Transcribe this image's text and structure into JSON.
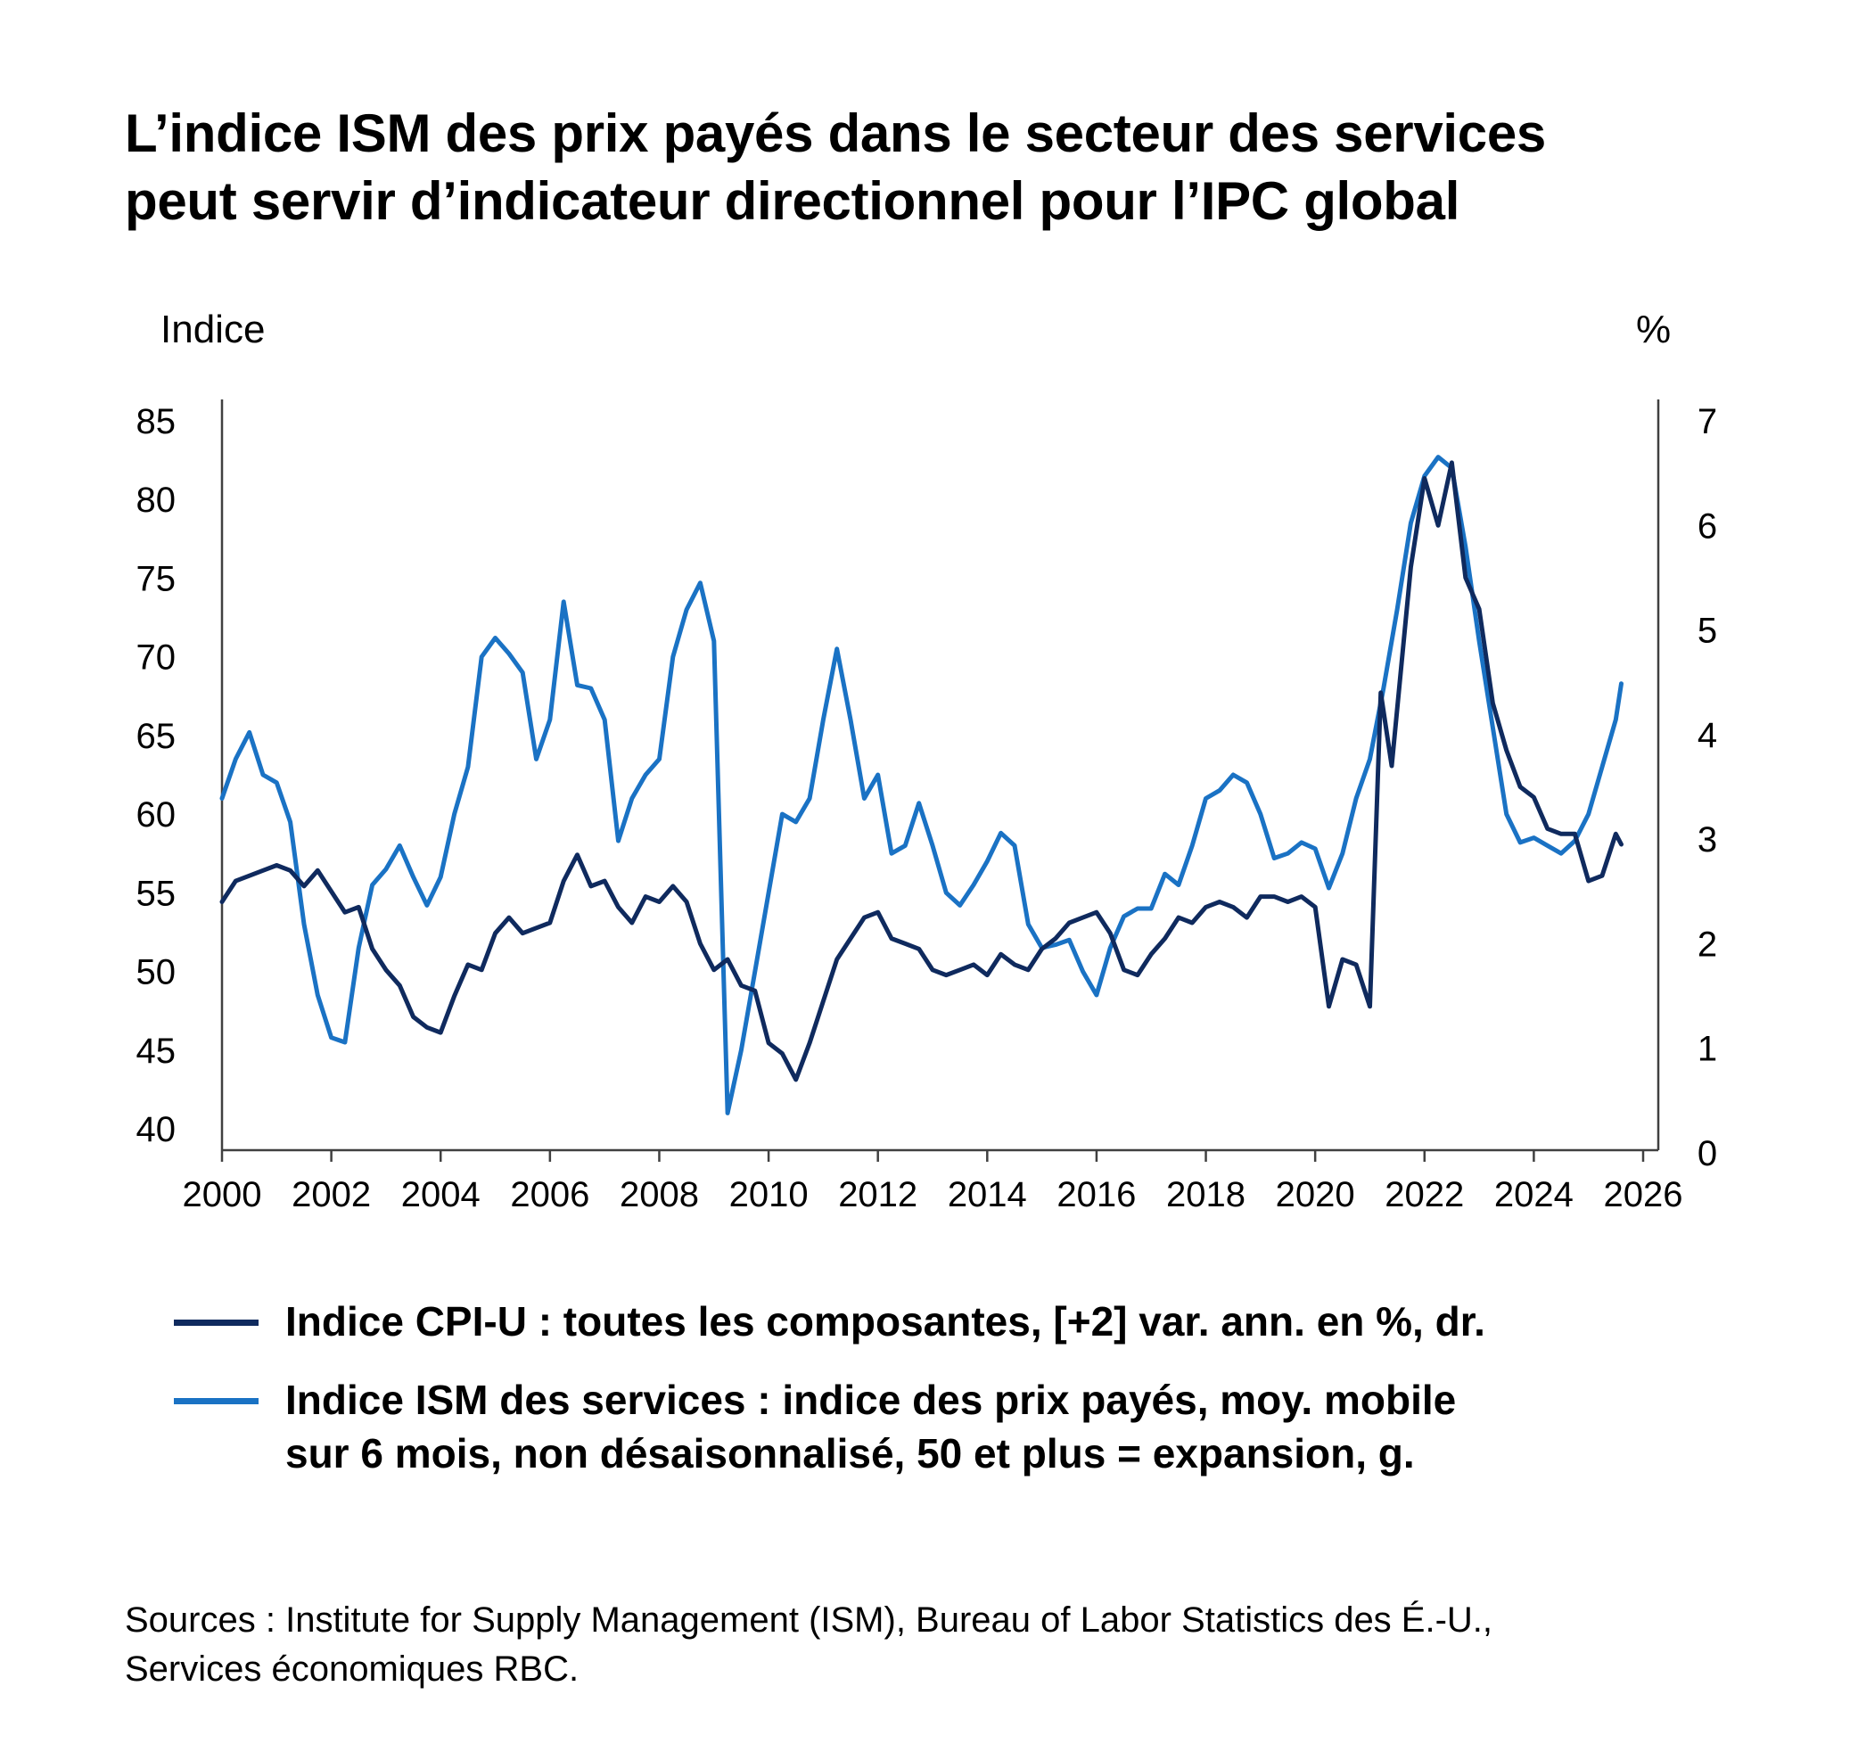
{
  "title_lines": [
    "L’indice ISM des prix payés dans le secteur des services",
    "peut servir d’indicateur directionnel pour l’IPC global"
  ],
  "axis_units": {
    "left": "Indice",
    "right": "%"
  },
  "legend": [
    {
      "label": "Indice CPI-U : toutes les composantes, [+2] var. ann. en %, dr.",
      "color": "#0f2a5e"
    },
    {
      "label": "Indice ISM des services : indice des prix payés, moy. mobile\nsur 6 mois, non désaisonnalisé, 50 et plus = expansion, g.",
      "color": "#1a72c4"
    }
  ],
  "sources": "Sources : Institute for Supply Management (ISM), Bureau of Labor Statistics des É.-U.,\nServices économiques RBC.",
  "chart_data": {
    "type": "line",
    "title": "L’indice ISM des prix payés dans le secteur des services peut servir d’indicateur directionnel pour l’IPC global",
    "xlabel": "",
    "ylabel": "Indice",
    "y2label": "%",
    "xlim": [
      2000,
      2026
    ],
    "ylim": [
      40,
      85
    ],
    "y2lim": [
      0,
      7
    ],
    "xticks": [
      "2000",
      "2002",
      "2004",
      "2006",
      "2008",
      "2010",
      "2012",
      "2014",
      "2016",
      "2018",
      "2020",
      "2022",
      "2024",
      "2026"
    ],
    "yticks": [
      "85",
      "80",
      "75",
      "70",
      "65",
      "60",
      "55",
      "50",
      "45",
      "40"
    ],
    "y2ticks": [
      "7",
      "6",
      "5",
      "4",
      "3",
      "2",
      "1",
      "0"
    ],
    "grid": false,
    "legend_position": "bottom",
    "series": [
      {
        "name": "Indice CPI-U : toutes les composantes, [+2] var. ann. en %, dr.",
        "axis": "right",
        "color": "#0f2a5e",
        "x": [
          2000.0,
          2000.25,
          2000.5,
          2000.75,
          2001.0,
          2001.25,
          2001.5,
          2001.75,
          2002.0,
          2002.25,
          2002.5,
          2002.75,
          2003.0,
          2003.25,
          2003.5,
          2003.75,
          2004.0,
          2004.25,
          2004.5,
          2004.75,
          2005.0,
          2005.25,
          2005.5,
          2005.75,
          2006.0,
          2006.25,
          2006.5,
          2006.75,
          2007.0,
          2007.25,
          2007.5,
          2007.75,
          2008.0,
          2008.25,
          2008.5,
          2008.75,
          2009.0,
          2009.25,
          2009.5,
          2009.75,
          2010.0,
          2010.25,
          2010.5,
          2010.75,
          2011.0,
          2011.25,
          2011.5,
          2011.75,
          2012.0,
          2012.25,
          2012.5,
          2012.75,
          2013.0,
          2013.25,
          2013.5,
          2013.75,
          2014.0,
          2014.25,
          2014.5,
          2014.75,
          2015.0,
          2015.25,
          2015.5,
          2015.75,
          2016.0,
          2016.25,
          2016.5,
          2016.75,
          2017.0,
          2017.25,
          2017.5,
          2017.75,
          2018.0,
          2018.25,
          2018.5,
          2018.75,
          2019.0,
          2019.25,
          2019.5,
          2019.75,
          2020.0,
          2020.25,
          2020.5,
          2020.75,
          2021.0,
          2021.2,
          2021.4,
          2021.75,
          2022.0,
          2022.25,
          2022.5,
          2022.75,
          2023.0,
          2023.25,
          2023.5,
          2023.75,
          2024.0,
          2024.25,
          2024.5,
          2024.75,
          2025.0,
          2025.25,
          2025.5,
          2025.6
        ],
        "values": [
          2.4,
          2.6,
          2.65,
          2.7,
          2.75,
          2.7,
          2.55,
          2.7,
          2.5,
          2.3,
          2.35,
          1.95,
          1.75,
          1.6,
          1.3,
          1.2,
          1.15,
          1.5,
          1.8,
          1.75,
          2.1,
          2.25,
          2.1,
          2.15,
          2.2,
          2.6,
          2.85,
          2.55,
          2.6,
          2.35,
          2.2,
          2.45,
          2.4,
          2.55,
          2.4,
          2.0,
          1.75,
          1.85,
          1.6,
          1.55,
          1.05,
          0.95,
          0.7,
          1.05,
          1.45,
          1.85,
          2.05,
          2.25,
          2.3,
          2.05,
          2.0,
          1.95,
          1.75,
          1.7,
          1.75,
          1.8,
          1.7,
          1.9,
          1.8,
          1.75,
          1.95,
          2.05,
          2.2,
          2.25,
          2.3,
          2.1,
          1.75,
          1.7,
          1.9,
          2.05,
          2.25,
          2.2,
          2.35,
          2.4,
          2.35,
          2.25,
          2.45,
          2.45,
          2.4,
          2.45,
          2.35,
          1.4,
          1.85,
          1.8,
          1.4,
          4.4,
          3.7,
          5.6,
          6.45,
          6.0,
          6.6,
          5.5,
          5.2,
          4.3,
          3.85,
          3.5,
          3.4,
          3.1,
          3.05,
          3.05,
          2.6,
          2.65,
          3.05,
          2.95
        ]
      },
      {
        "name": "Indice ISM des services : indice des prix payés, moy. mobile sur 6 mois, non désaisonnalisé, 50 et plus = expansion, g.",
        "axis": "left",
        "color": "#1a72c4",
        "x": [
          2000.0,
          2000.25,
          2000.5,
          2000.75,
          2001.0,
          2001.25,
          2001.5,
          2001.75,
          2002.0,
          2002.25,
          2002.5,
          2002.75,
          2003.0,
          2003.25,
          2003.5,
          2003.75,
          2004.0,
          2004.25,
          2004.5,
          2004.75,
          2005.0,
          2005.25,
          2005.5,
          2005.75,
          2006.0,
          2006.25,
          2006.5,
          2006.75,
          2007.0,
          2007.25,
          2007.5,
          2007.75,
          2008.0,
          2008.25,
          2008.5,
          2008.75,
          2009.0,
          2009.25,
          2009.5,
          2009.75,
          2010.0,
          2010.25,
          2010.5,
          2010.75,
          2011.0,
          2011.25,
          2011.5,
          2011.75,
          2012.0,
          2012.25,
          2012.5,
          2012.75,
          2013.0,
          2013.25,
          2013.5,
          2013.75,
          2014.0,
          2014.25,
          2014.5,
          2014.75,
          2015.0,
          2015.25,
          2015.5,
          2015.75,
          2016.0,
          2016.25,
          2016.5,
          2016.75,
          2017.0,
          2017.25,
          2017.5,
          2017.75,
          2018.0,
          2018.25,
          2018.5,
          2018.75,
          2019.0,
          2019.25,
          2019.5,
          2019.75,
          2020.0,
          2020.25,
          2020.5,
          2020.75,
          2021.0,
          2021.25,
          2021.5,
          2021.75,
          2022.0,
          2022.25,
          2022.5,
          2022.75,
          2023.0,
          2023.25,
          2023.5,
          2023.75,
          2024.0,
          2024.25,
          2024.5,
          2024.75,
          2025.0,
          2025.25,
          2025.5,
          2025.6
        ],
        "values": [
          61,
          63.5,
          65.2,
          62.5,
          62,
          59.5,
          53,
          48.5,
          45.8,
          45.5,
          51.5,
          55.5,
          56.5,
          58,
          56,
          54.2,
          56,
          60,
          63,
          70,
          71.2,
          70.2,
          69,
          63.5,
          66,
          73.5,
          68.2,
          68,
          66,
          58.3,
          61,
          62.5,
          63.5,
          70,
          73,
          74.7,
          71,
          41,
          45,
          50,
          55,
          60,
          59.5,
          61,
          66,
          70.5,
          66,
          61,
          62.5,
          57.5,
          58,
          60.7,
          58,
          55,
          54.2,
          55.5,
          57,
          58.8,
          58,
          53,
          51.5,
          51.7,
          52,
          50,
          48.5,
          51.5,
          53.5,
          54,
          54,
          56.2,
          55.5,
          58,
          61,
          61.5,
          62.5,
          62,
          60,
          57.2,
          57.5,
          58.2,
          57.8,
          55.3,
          57.5,
          61,
          63.5,
          68,
          73,
          78.5,
          81.5,
          82.7,
          82,
          77,
          71,
          65.5,
          60,
          58.2,
          58.5,
          58,
          57.5,
          58.3,
          60,
          63,
          66,
          68.3
        ]
      }
    ]
  }
}
